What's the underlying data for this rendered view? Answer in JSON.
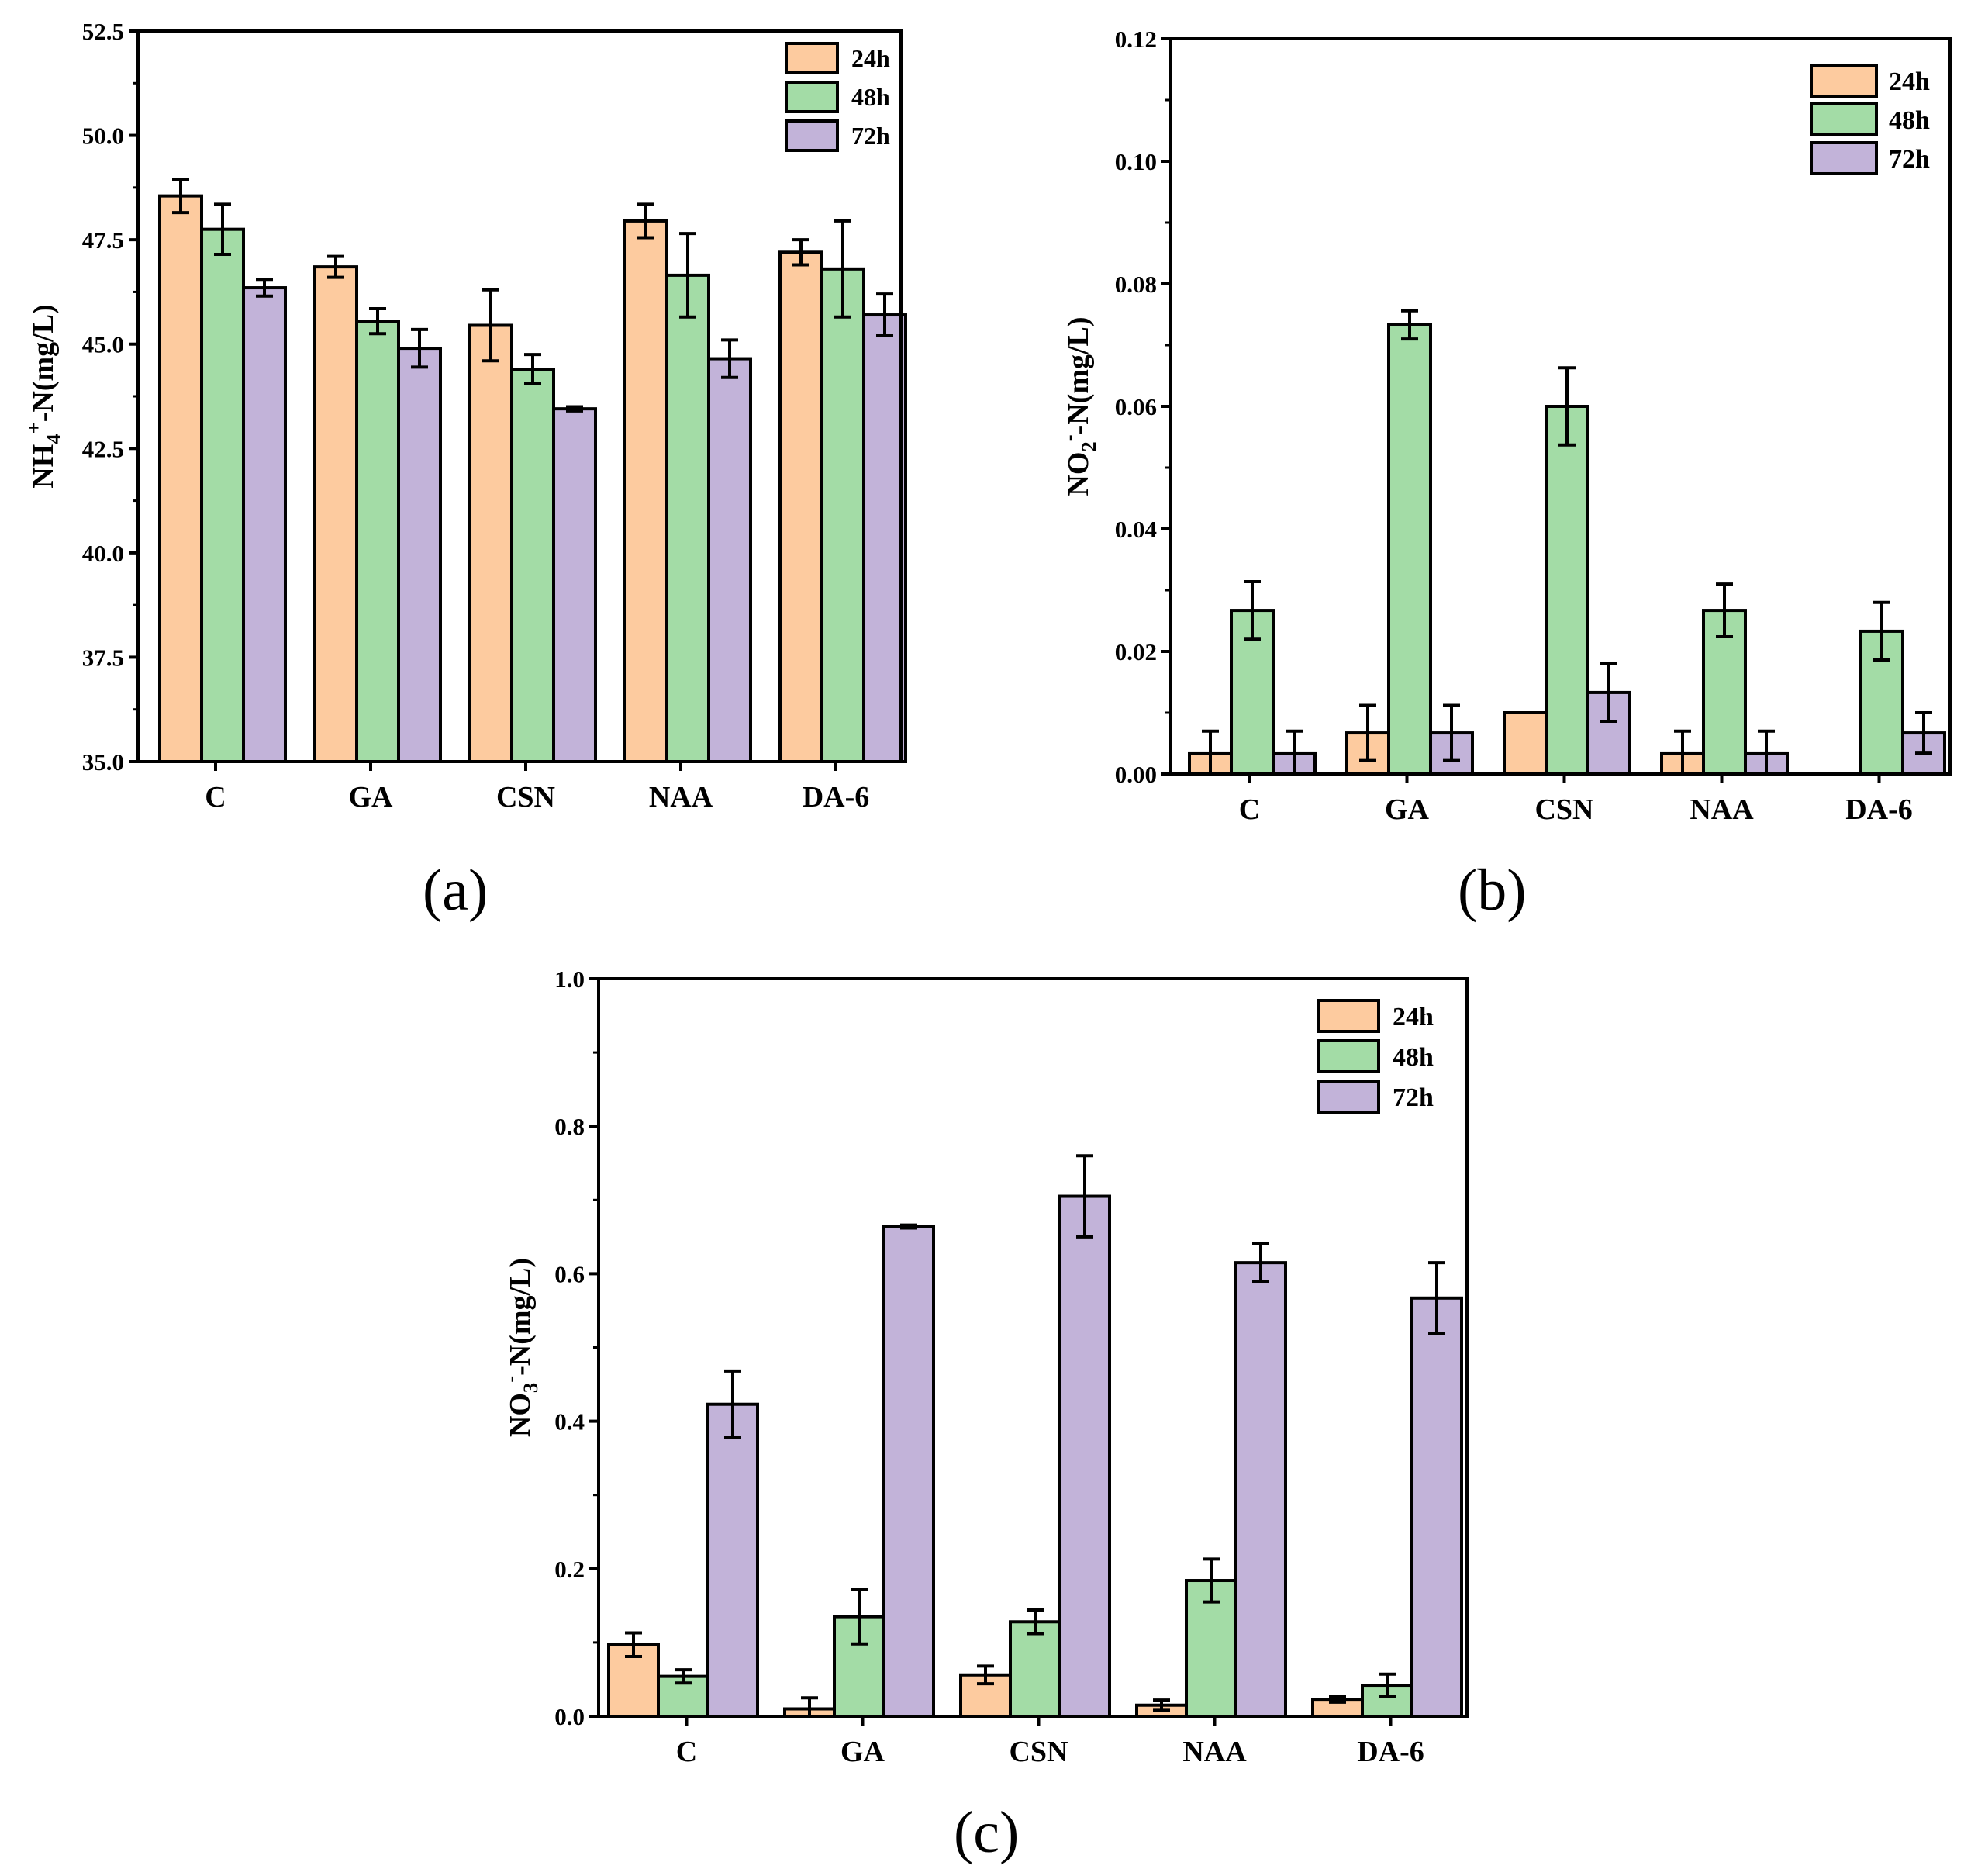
{
  "legend_colors": {
    "24h": "#fdcb9f",
    "48h": "#a3dca6",
    "72h": "#c2b3d9"
  },
  "panels": {
    "a": {
      "label": "(a)"
    },
    "b": {
      "label": "(b)"
    },
    "c": {
      "label": "(c)"
    }
  },
  "chart_data": [
    {
      "id": "a",
      "type": "bar",
      "title": "",
      "xlabel": "",
      "ylabel_parts": [
        "NH",
        "4",
        "+",
        "-N(mg/L)"
      ],
      "categories": [
        "C",
        "GA",
        "CSN",
        "NAA",
        "DA-6"
      ],
      "ylim": [
        35.0,
        52.5
      ],
      "yticks": [
        "35.0",
        "37.5",
        "40.0",
        "42.5",
        "45.0",
        "47.5",
        "50.0",
        "52.5"
      ],
      "legend_position": "top-right",
      "series": [
        {
          "name": "24h",
          "values": [
            48.55,
            46.85,
            45.45,
            47.95,
            47.2
          ],
          "errors": [
            0.4,
            0.25,
            0.85,
            0.4,
            0.3
          ]
        },
        {
          "name": "48h",
          "values": [
            47.75,
            45.55,
            44.4,
            46.65,
            46.8
          ],
          "errors": [
            0.6,
            0.3,
            0.35,
            1.0,
            1.15
          ]
        },
        {
          "name": "72h",
          "values": [
            46.35,
            44.9,
            43.45,
            44.65,
            45.7
          ],
          "errors": [
            0.2,
            0.45,
            0.05,
            0.45,
            0.5
          ]
        }
      ]
    },
    {
      "id": "b",
      "type": "bar",
      "title": "",
      "xlabel": "",
      "ylabel_parts": [
        "NO",
        "2",
        "-",
        "-N(mg/L)"
      ],
      "categories": [
        "C",
        "GA",
        "CSN",
        "NAA",
        "DA-6"
      ],
      "ylim": [
        0.0,
        0.12
      ],
      "yticks": [
        "0.00",
        "0.02",
        "0.04",
        "0.06",
        "0.08",
        "0.10",
        "0.12"
      ],
      "legend_position": "top-right",
      "series": [
        {
          "name": "24h",
          "values": [
            0.0033,
            0.0067,
            0.01,
            0.0033,
            0.0
          ],
          "errors": [
            0.0037,
            0.0045,
            0.0,
            0.0037,
            0.0
          ]
        },
        {
          "name": "48h",
          "values": [
            0.0267,
            0.0733,
            0.06,
            0.0267,
            0.0233
          ],
          "errors": [
            0.0047,
            0.0023,
            0.0063,
            0.0043,
            0.0047
          ]
        },
        {
          "name": "72h",
          "values": [
            0.0033,
            0.0067,
            0.0133,
            0.0033,
            0.0067
          ],
          "errors": [
            0.0037,
            0.0045,
            0.0047,
            0.0037,
            0.0033
          ]
        }
      ]
    },
    {
      "id": "c",
      "type": "bar",
      "title": "",
      "xlabel": "",
      "ylabel_parts": [
        "NO",
        "3",
        "-",
        "-N(mg/L)"
      ],
      "categories": [
        "C",
        "GA",
        "CSN",
        "NAA",
        "DA-6"
      ],
      "ylim": [
        0.0,
        1.0
      ],
      "yticks": [
        "0.0",
        "0.2",
        "0.4",
        "0.6",
        "0.8",
        "1.0"
      ],
      "legend_position": "top-right",
      "series": [
        {
          "name": "24h",
          "values": [
            0.097,
            0.01,
            0.056,
            0.015,
            0.023
          ],
          "errors": [
            0.016,
            0.015,
            0.012,
            0.007,
            0.004
          ]
        },
        {
          "name": "48h",
          "values": [
            0.054,
            0.135,
            0.128,
            0.184,
            0.042
          ],
          "errors": [
            0.009,
            0.037,
            0.016,
            0.029,
            0.015
          ]
        },
        {
          "name": "72h",
          "values": [
            0.423,
            0.664,
            0.705,
            0.615,
            0.567
          ],
          "errors": [
            0.045,
            0.002,
            0.055,
            0.026,
            0.048
          ]
        }
      ]
    }
  ]
}
